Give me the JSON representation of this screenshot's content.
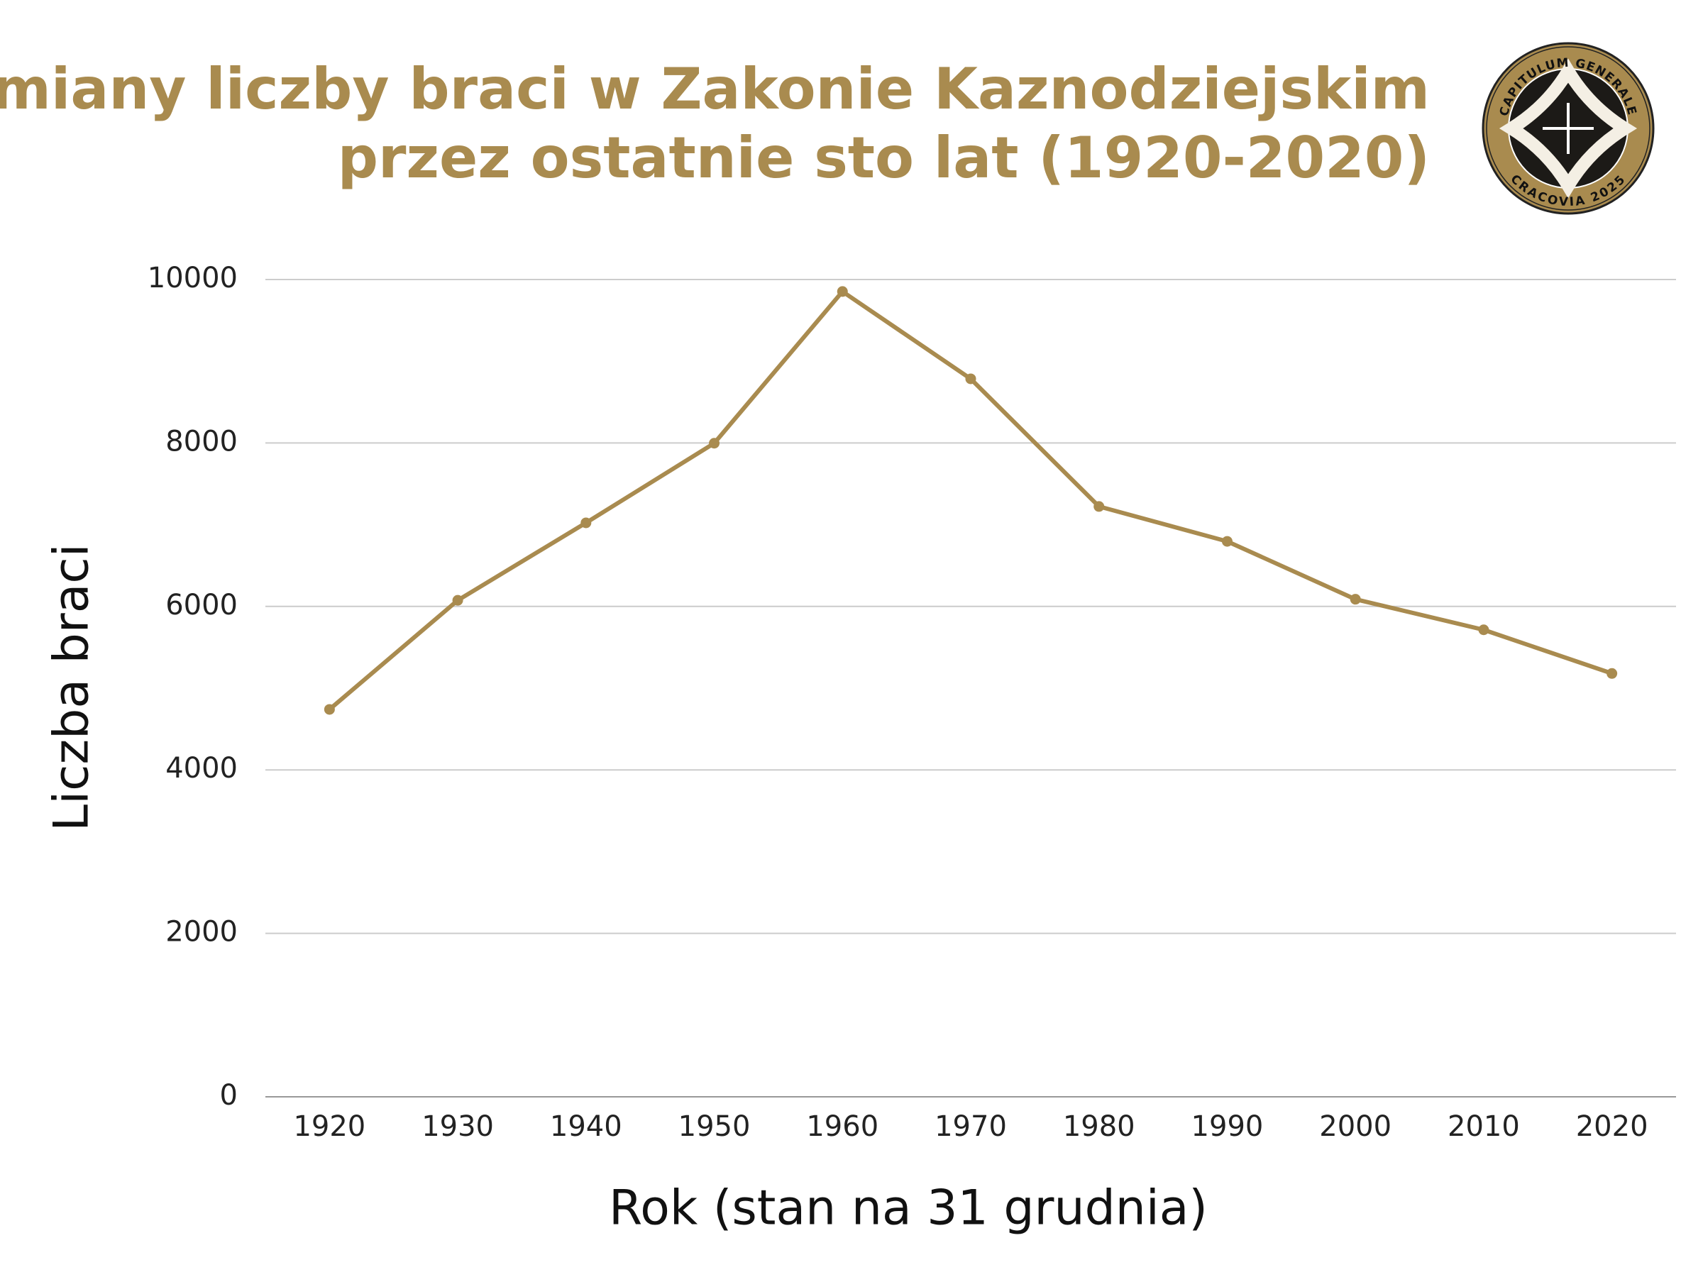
{
  "chart_data": {
    "type": "line",
    "title": [
      "Zmiany liczby braci w Zakonie Kaznodziejskim",
      "przez ostatnie sto lat (1920-2020)"
    ],
    "x_label": "Rok (stan na 31 grudnia)",
    "y_label": "Liczba braci",
    "categories": [
      "1920",
      "1930",
      "1940",
      "1950",
      "1960",
      "1970",
      "1980",
      "1990",
      "2000",
      "2010",
      "2020"
    ],
    "values": [
      4740,
      6075,
      7023,
      7997,
      9853,
      8785,
      7223,
      6796,
      6088,
      5714,
      5180
    ],
    "color": "#a98b4f",
    "ylim": [
      0,
      10000
    ],
    "yticks": [
      0,
      2000,
      4000,
      6000,
      8000,
      10000
    ],
    "grid": true
  },
  "logo": {
    "top_text": "CAPITULUM GENERALE",
    "bottom_text": "CRACOVIA 2025"
  }
}
